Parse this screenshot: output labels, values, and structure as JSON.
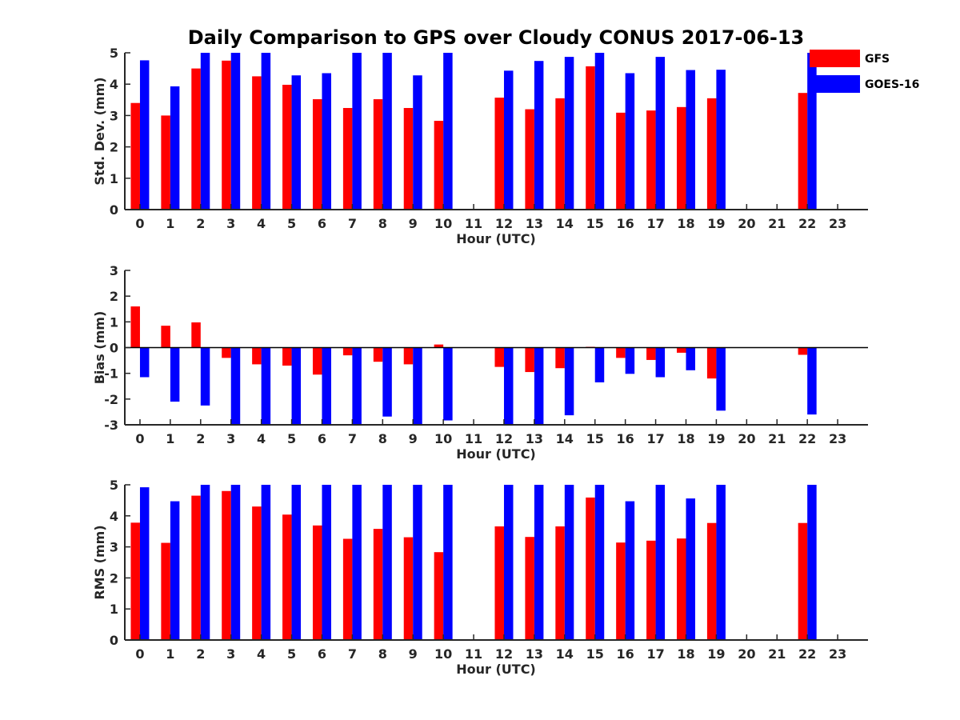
{
  "chart_data": {
    "type": "bar",
    "title": "Daily Comparison to GPS over Cloudy CONUS 2017-06-13",
    "categories": [
      "0",
      "1",
      "2",
      "3",
      "4",
      "5",
      "6",
      "7",
      "8",
      "9",
      "10",
      "11",
      "12",
      "13",
      "14",
      "15",
      "16",
      "17",
      "18",
      "19",
      "20",
      "21",
      "22",
      "23"
    ],
    "legend": {
      "placement": "top-right",
      "entries": [
        "GFS",
        "GOES-16"
      ]
    },
    "colors": {
      "GFS": "#ff0000",
      "GOES-16": "#0000ff",
      "axis": "#262626"
    },
    "grid": false,
    "panels": [
      {
        "xlabel": "Hour (UTC)",
        "ylabel": "Std. Dev. (mm)",
        "ylim": [
          0,
          5
        ],
        "yticks": [
          0,
          1,
          2,
          3,
          4,
          5
        ],
        "zero_line": false,
        "series": [
          {
            "name": "GFS",
            "values": [
              3.4,
              3.0,
              4.5,
              4.75,
              4.25,
              3.98,
              3.52,
              3.24,
              3.52,
              3.24,
              2.83,
              null,
              3.57,
              3.2,
              3.55,
              4.57,
              3.09,
              3.16,
              3.27,
              3.55,
              null,
              null,
              3.72,
              null
            ]
          },
          {
            "name": "GOES-16",
            "values": [
              4.76,
              3.93,
              5.0,
              5.0,
              5.0,
              4.28,
              4.35,
              5.0,
              5.0,
              4.28,
              5.0,
              null,
              4.43,
              4.74,
              4.87,
              5.0,
              4.35,
              4.87,
              4.45,
              4.46,
              null,
              null,
              5.0,
              null
            ]
          }
        ]
      },
      {
        "xlabel": "Hour (UTC)",
        "ylabel": "Bias (mm)",
        "ylim": [
          -3,
          3
        ],
        "yticks": [
          -3,
          -2,
          -1,
          0,
          1,
          2,
          3
        ],
        "zero_line": true,
        "series": [
          {
            "name": "GFS",
            "values": [
              1.6,
              0.85,
              0.98,
              -0.4,
              -0.65,
              -0.7,
              -1.05,
              -0.3,
              -0.55,
              -0.65,
              0.12,
              null,
              -0.75,
              -0.95,
              -0.8,
              0.03,
              -0.4,
              -0.48,
              -0.2,
              -1.2,
              null,
              null,
              -0.28,
              null
            ]
          },
          {
            "name": "GOES-16",
            "values": [
              -1.15,
              -2.1,
              -2.25,
              -3.0,
              -3.0,
              -3.0,
              -3.0,
              -3.0,
              -2.68,
              -3.0,
              -2.83,
              null,
              -3.0,
              -3.0,
              -2.63,
              -1.35,
              -1.02,
              -1.15,
              -0.88,
              -2.45,
              null,
              null,
              -2.6,
              null
            ]
          }
        ]
      },
      {
        "xlabel": "Hour (UTC)",
        "ylabel": "RMS (mm)",
        "ylim": [
          0,
          5
        ],
        "yticks": [
          0,
          1,
          2,
          3,
          4,
          5
        ],
        "zero_line": false,
        "series": [
          {
            "name": "GFS",
            "values": [
              3.78,
              3.13,
              4.65,
              4.8,
              4.3,
              4.04,
              3.69,
              3.26,
              3.58,
              3.31,
              2.83,
              null,
              3.66,
              3.32,
              3.66,
              4.59,
              3.14,
              3.2,
              3.27,
              3.77,
              null,
              null,
              3.77,
              null
            ]
          },
          {
            "name": "GOES-16",
            "values": [
              4.92,
              4.47,
              5.0,
              5.0,
              5.0,
              5.0,
              5.0,
              5.0,
              5.0,
              5.0,
              5.0,
              null,
              5.0,
              5.0,
              5.0,
              5.0,
              4.47,
              5.0,
              4.56,
              5.0,
              null,
              null,
              5.0,
              null
            ]
          }
        ]
      }
    ]
  }
}
